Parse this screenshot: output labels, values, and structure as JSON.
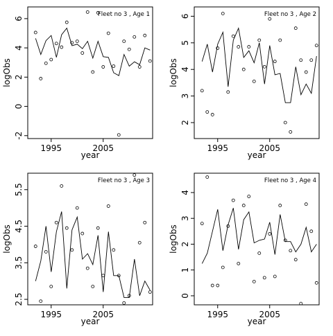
{
  "chart_data": [
    {
      "type": "scatter",
      "title": "Fleet no 3 , Age 1",
      "xlabel": "year",
      "ylabel": "logObs",
      "xlim": [
        1990.5,
        2014.5
      ],
      "ylim": [
        -2.2,
        6.8
      ],
      "xticks": [
        1995,
        2005
      ],
      "yticks": [
        -2,
        0,
        2,
        4,
        6
      ],
      "points": {
        "x": [
          1992,
          1993,
          1994,
          1995,
          1996,
          1997,
          1998,
          1999,
          2000,
          2001,
          2002,
          2003,
          2004,
          2005,
          2006,
          2007,
          2008,
          2009,
          2010,
          2011,
          2012,
          2013,
          2014
        ],
        "y": [
          5.05,
          1.9,
          2.95,
          3.2,
          4.3,
          4.05,
          5.75,
          4.35,
          4.45,
          3.65,
          6.45,
          2.35,
          6.4,
          2.7,
          5.0,
          2.75,
          -1.95,
          4.45,
          3.9,
          4.75,
          2.7,
          4.85,
          3.1
        ]
      },
      "fitted": {
        "x": [
          1992,
          1993,
          1994,
          1995,
          1996,
          1997,
          1998,
          1999,
          2000,
          2001,
          2002,
          2003,
          2004,
          2005,
          2006,
          2007,
          2008,
          2009,
          2010,
          2011,
          2012,
          2013,
          2014
        ],
        "y": [
          4.65,
          3.55,
          4.5,
          4.85,
          3.35,
          4.9,
          5.35,
          4.15,
          4.25,
          3.95,
          4.45,
          3.3,
          4.45,
          3.4,
          3.35,
          2.3,
          2.1,
          3.55,
          2.75,
          3.05,
          2.85,
          4.0,
          3.85
        ]
      }
    },
    {
      "type": "scatter",
      "title": "Fleet no 3 , Age 2",
      "xlabel": "year",
      "ylabel": "logObs",
      "xlim": [
        1990.5,
        2014.5
      ],
      "ylim": [
        1.4,
        6.35
      ],
      "xticks": [
        1995,
        2005
      ],
      "yticks": [
        2,
        3,
        4,
        5,
        6
      ],
      "points": {
        "x": [
          1992,
          1993,
          1994,
          1995,
          1996,
          1997,
          1998,
          1999,
          2000,
          2001,
          2002,
          2003,
          2004,
          2005,
          2006,
          2007,
          2008,
          2009,
          2010,
          2011,
          2012,
          2013,
          2014
        ],
        "y": [
          3.2,
          2.4,
          2.3,
          4.8,
          6.1,
          3.15,
          5.25,
          4.85,
          4.0,
          4.85,
          3.55,
          5.1,
          4.1,
          5.9,
          4.3,
          5.1,
          2.0,
          1.65,
          5.55,
          4.35,
          3.9,
          4.35,
          4.9
        ]
      },
      "fitted": {
        "x": [
          1992,
          1993,
          1994,
          1995,
          1996,
          1997,
          1998,
          1999,
          2000,
          2001,
          2002,
          2003,
          2004,
          2005,
          2006,
          2007,
          2008,
          2009,
          2010,
          2011,
          2012,
          2013,
          2014
        ],
        "y": [
          4.3,
          4.95,
          3.9,
          4.95,
          5.4,
          3.35,
          5.1,
          5.55,
          4.45,
          4.7,
          4.25,
          5.0,
          3.45,
          4.9,
          3.8,
          3.85,
          2.75,
          2.75,
          4.1,
          3.05,
          3.45,
          3.1,
          4.5
        ]
      }
    },
    {
      "type": "scatter",
      "title": "Fleet no 3 , Age 3",
      "xlabel": "year",
      "ylabel": "logObs",
      "xlim": [
        1990.5,
        2014.5
      ],
      "ylim": [
        2.35,
        5.95
      ],
      "xticks": [
        1995,
        2005
      ],
      "yticks": [
        2.5,
        3.5,
        4.5,
        5.5
      ],
      "points": {
        "x": [
          1992,
          1993,
          1994,
          1995,
          1996,
          1997,
          1998,
          1999,
          2000,
          2001,
          2002,
          2003,
          2004,
          2005,
          2006,
          2007,
          2008,
          2009,
          2010,
          2011,
          2012,
          2013,
          2014
        ],
        "y": [
          3.95,
          2.45,
          3.8,
          2.85,
          4.6,
          5.6,
          4.45,
          3.85,
          5.0,
          4.3,
          3.35,
          2.85,
          4.45,
          3.15,
          5.05,
          3.85,
          3.15,
          2.4,
          2.6,
          5.9,
          4.05,
          4.6,
          2.7
        ]
      },
      "fitted": {
        "x": [
          1992,
          1993,
          1994,
          1995,
          1996,
          1997,
          1998,
          1999,
          2000,
          2001,
          2002,
          2003,
          2004,
          2005,
          2006,
          2007,
          2008,
          2009,
          2010,
          2011,
          2012,
          2013,
          2014
        ],
        "y": [
          3.0,
          3.55,
          4.5,
          3.25,
          4.35,
          4.9,
          2.8,
          4.4,
          4.75,
          3.6,
          3.75,
          3.45,
          4.25,
          2.7,
          4.35,
          3.15,
          3.15,
          2.55,
          2.55,
          3.6,
          2.6,
          3.0,
          2.75
        ]
      }
    },
    {
      "type": "scatter",
      "title": "Fleet no 3 , Age 4",
      "xlabel": "year",
      "ylabel": "logObs",
      "xlim": [
        1990.5,
        2014.5
      ],
      "ylim": [
        -0.35,
        4.75
      ],
      "xticks": [
        1995,
        2005
      ],
      "yticks": [
        0,
        1,
        2,
        3,
        4
      ],
      "points": {
        "x": [
          1992,
          1993,
          1994,
          1995,
          1996,
          1997,
          1998,
          1999,
          2000,
          2001,
          2002,
          2003,
          2004,
          2005,
          2006,
          2007,
          2008,
          2009,
          2010,
          2011,
          2012,
          2013,
          2014
        ],
        "y": [
          2.8,
          4.6,
          0.4,
          0.4,
          1.1,
          2.7,
          3.7,
          1.25,
          3.5,
          3.85,
          0.55,
          1.65,
          0.7,
          2.4,
          0.75,
          3.5,
          2.15,
          1.75,
          1.4,
          -0.3,
          3.55,
          2.5,
          0.5
        ]
      },
      "fitted": {
        "x": [
          1992,
          1993,
          1994,
          1995,
          1996,
          1997,
          1998,
          1999,
          2000,
          2001,
          2002,
          2003,
          2004,
          2005,
          2006,
          2007,
          2008,
          2009,
          2010,
          2011,
          2012,
          2013,
          2014
        ],
        "y": [
          1.25,
          1.65,
          2.5,
          3.35,
          1.75,
          2.75,
          3.4,
          1.8,
          2.95,
          3.25,
          2.05,
          2.15,
          2.2,
          2.85,
          1.6,
          3.15,
          2.1,
          2.1,
          1.7,
          2.0,
          2.65,
          1.7,
          2.0
        ]
      }
    }
  ]
}
